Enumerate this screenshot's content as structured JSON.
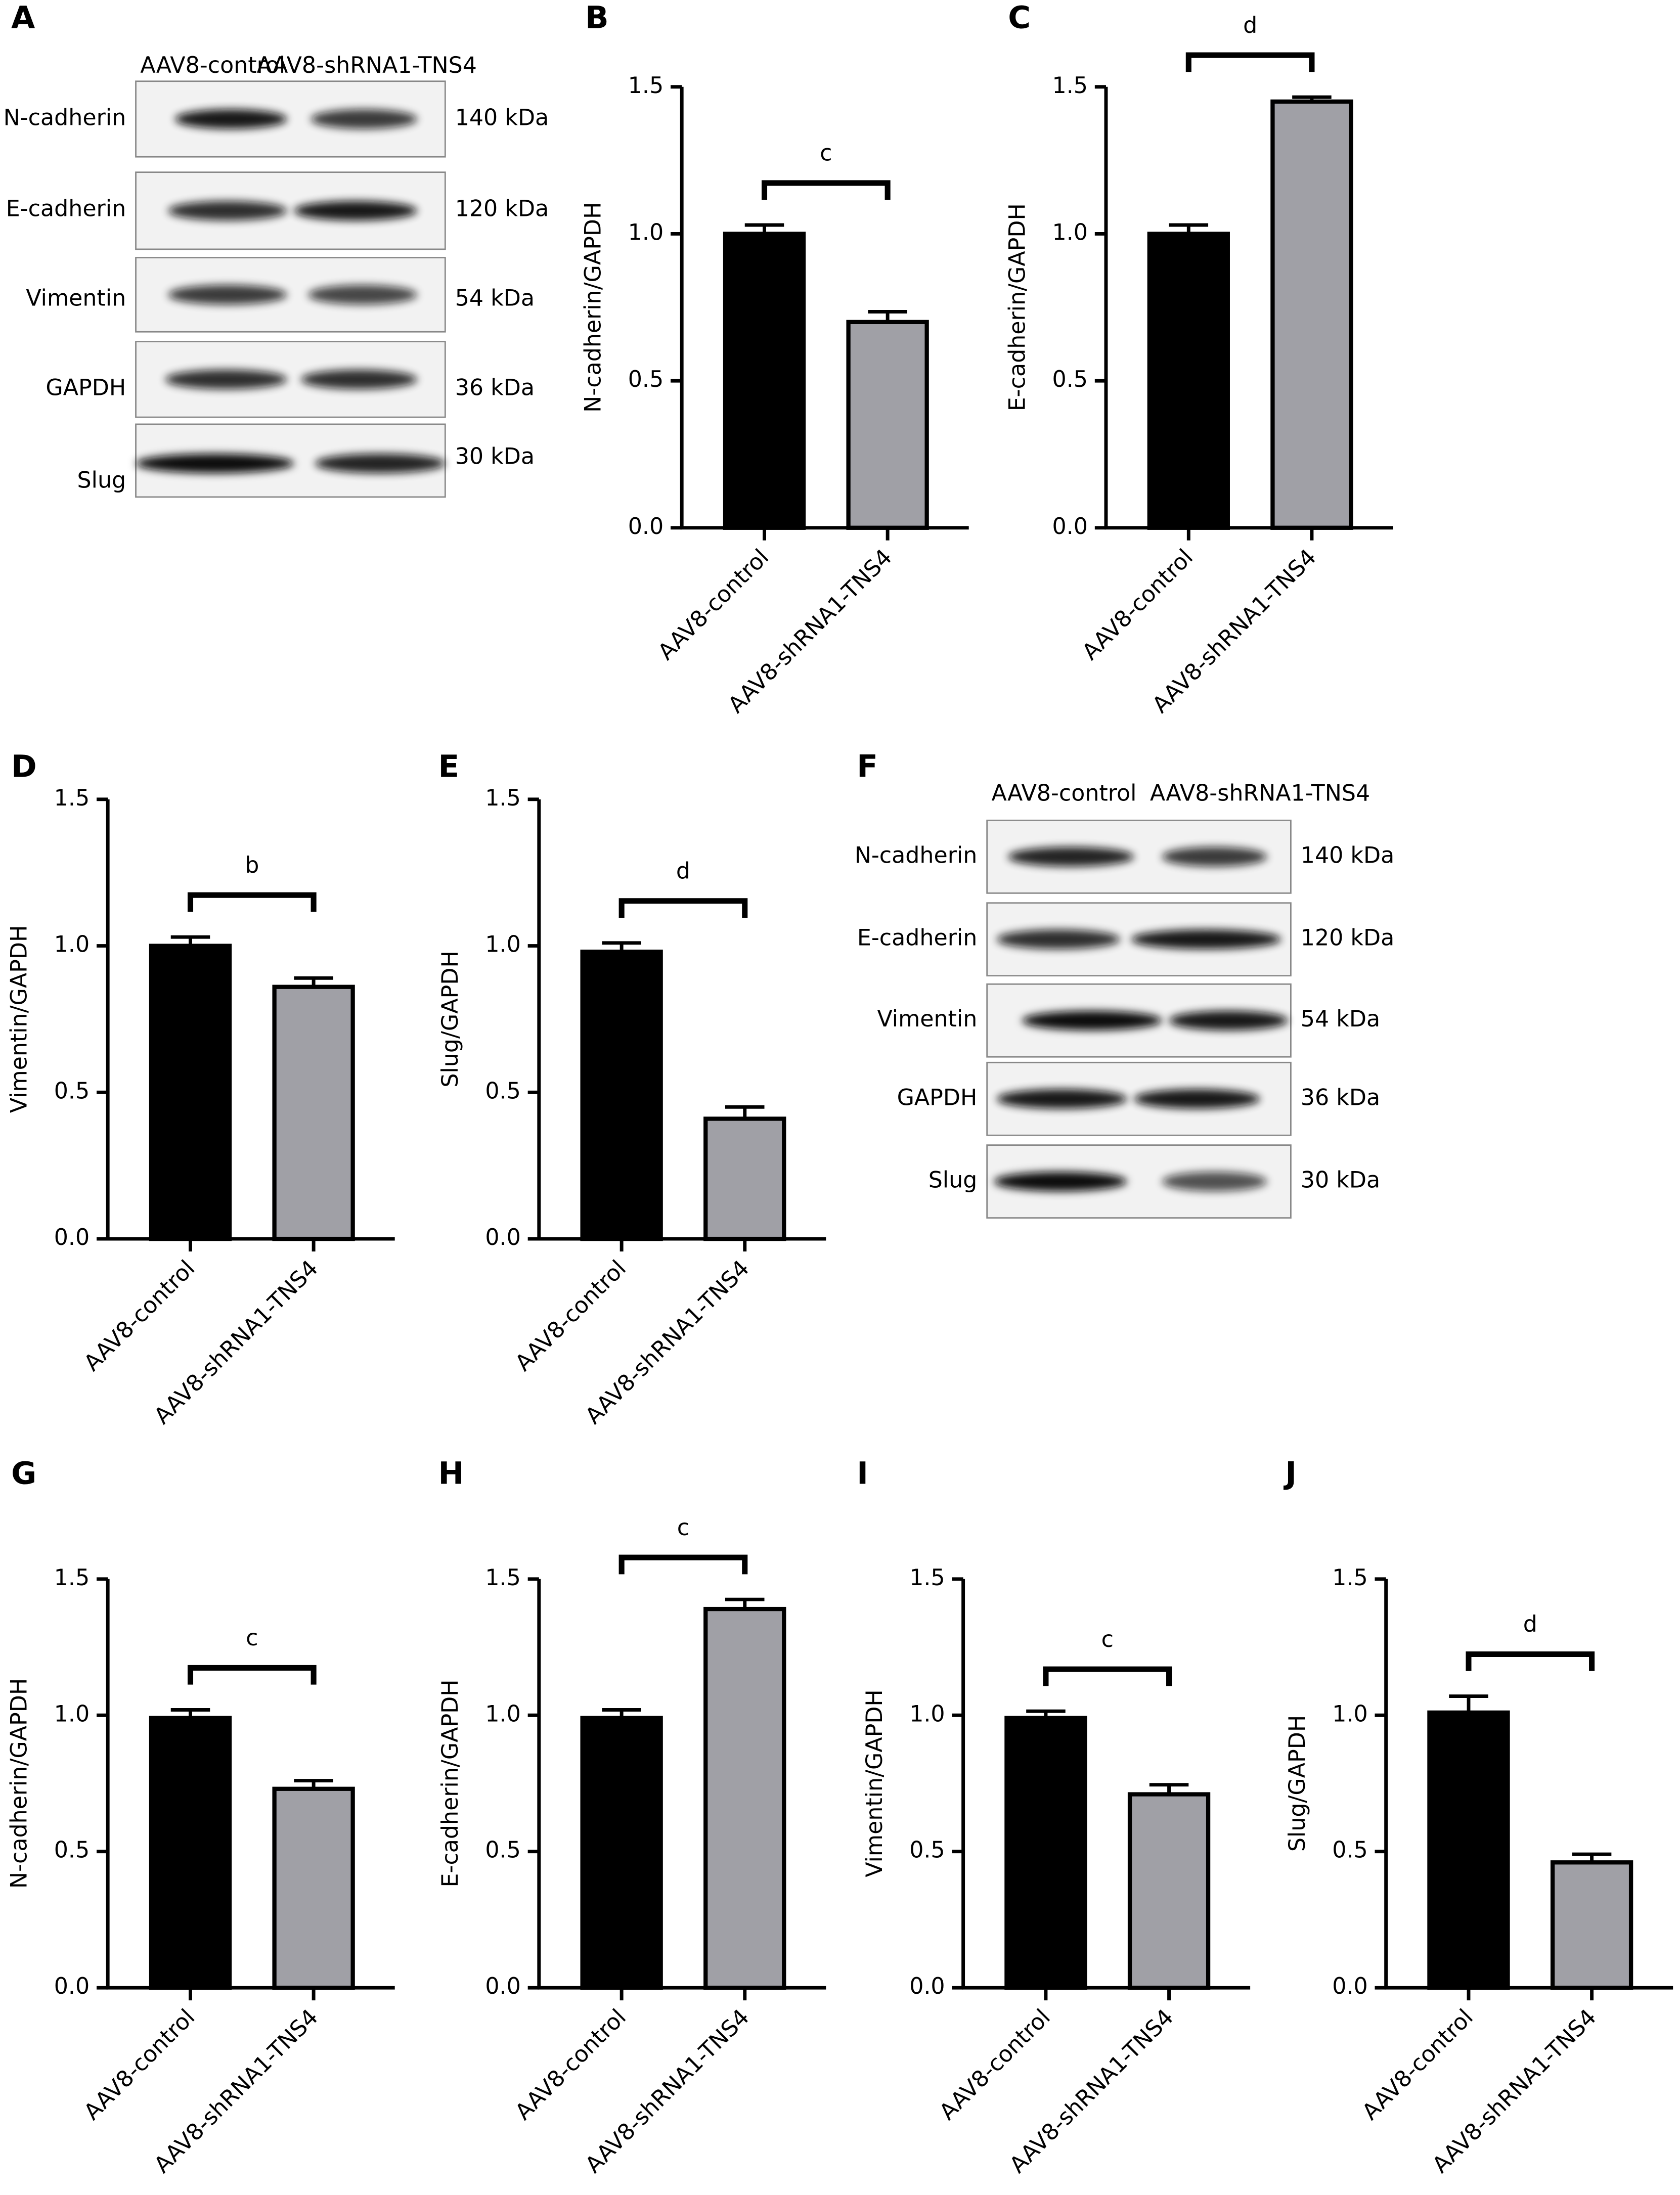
{
  "blots": [
    {
      "panel": "A",
      "columns": [
        "AAV8-control",
        "AAV8-shRNA1-TNS4"
      ],
      "rows": [
        {
          "protein": "N-cadherin",
          "size": "140 kDa"
        },
        {
          "protein": "E-cadherin",
          "size": "120 kDa"
        },
        {
          "protein": "Vimentin",
          "size": "54 kDa"
        },
        {
          "protein": "GAPDH",
          "size": "36 kDa"
        },
        {
          "protein": "Slug",
          "size": "30 kDa"
        }
      ]
    },
    {
      "panel": "F",
      "columns": [
        "AAV8-control",
        "AAV8-shRNA1-TNS4"
      ],
      "rows": [
        {
          "protein": "N-cadherin",
          "size": "140 kDa"
        },
        {
          "protein": "E-cadherin",
          "size": "120 kDa"
        },
        {
          "protein": "Vimentin",
          "size": "54 kDa"
        },
        {
          "protein": "GAPDH",
          "size": "36 kDa"
        },
        {
          "protein": "Slug",
          "size": "30 kDa"
        }
      ]
    }
  ],
  "chart_data": [
    {
      "type": "bar",
      "panel": "B",
      "ylabel": "N-cadherin/GAPDH",
      "categories": [
        "AAV8-control",
        "AAV8-shRNA1-TNS4"
      ],
      "values": [
        1.0,
        0.7
      ],
      "errors": [
        0.03,
        0.035
      ],
      "colors": [
        "#000000",
        "#a0a0a6"
      ],
      "ylim": [
        0,
        1.5
      ],
      "yticks": [
        {
          "value": 0,
          "label": "0.0"
        },
        0.5,
        {
          "value": 1,
          "label": "1.0"
        },
        1.5
      ],
      "significance": "c"
    },
    {
      "type": "bar",
      "panel": "C",
      "ylabel": "E-cadherin/GAPDH",
      "categories": [
        "AAV8-control",
        "AAV8-shRNA1-TNS4"
      ],
      "values": [
        1.0,
        1.45
      ],
      "errors": [
        0.03,
        0.015
      ],
      "colors": [
        "#000000",
        "#a0a0a6"
      ],
      "ylim": [
        0,
        1.5
      ],
      "yticks": [
        {
          "value": 0,
          "label": "0.0"
        },
        0.5,
        {
          "value": 1,
          "label": "1.0"
        },
        1.5
      ],
      "significance": "d"
    },
    {
      "type": "bar",
      "panel": "D",
      "ylabel": "Vimentin/GAPDH",
      "categories": [
        "AAV8-control",
        "AAV8-shRNA1-TNS4"
      ],
      "values": [
        1.0,
        0.86
      ],
      "errors": [
        0.03,
        0.03
      ],
      "colors": [
        "#000000",
        "#a0a0a6"
      ],
      "ylim": [
        0,
        1.5
      ],
      "yticks": [
        {
          "value": 0,
          "label": "0.0"
        },
        0.5,
        {
          "value": 1,
          "label": "1.0"
        },
        1.5
      ],
      "significance": "b"
    },
    {
      "type": "bar",
      "panel": "E",
      "ylabel": "Slug/GAPDH",
      "categories": [
        "AAV8-control",
        "AAV8-shRNA1-TNS4"
      ],
      "values": [
        0.98,
        0.41
      ],
      "errors": [
        0.03,
        0.04
      ],
      "colors": [
        "#000000",
        "#a0a0a6"
      ],
      "ylim": [
        0,
        1.5
      ],
      "yticks": [
        {
          "value": 0,
          "label": "0.0"
        },
        0.5,
        {
          "value": 1,
          "label": "1.0"
        },
        1.5
      ],
      "significance": "d"
    },
    {
      "type": "bar",
      "panel": "G",
      "ylabel": "N-cadherin/GAPDH",
      "categories": [
        "AAV8-control",
        "AAV8-shRNA1-TNS4"
      ],
      "values": [
        0.99,
        0.73
      ],
      "errors": [
        0.03,
        0.03
      ],
      "colors": [
        "#000000",
        "#a0a0a6"
      ],
      "ylim": [
        0,
        1.5
      ],
      "yticks": [
        {
          "value": 0,
          "label": "0.0"
        },
        0.5,
        {
          "value": 1,
          "label": "1.0"
        },
        1.5
      ],
      "significance": "c"
    },
    {
      "type": "bar",
      "panel": "H",
      "ylabel": "E-cadherin/GAPDH",
      "categories": [
        "AAV8-control",
        "AAV8-shRNA1-TNS4"
      ],
      "values": [
        0.99,
        1.39
      ],
      "errors": [
        0.03,
        0.035
      ],
      "colors": [
        "#000000",
        "#a0a0a6"
      ],
      "ylim": [
        0,
        1.5
      ],
      "yticks": [
        {
          "value": 0,
          "label": "0.0"
        },
        0.5,
        {
          "value": 1,
          "label": "1.0"
        },
        1.5
      ],
      "significance": "c"
    },
    {
      "type": "bar",
      "panel": "I",
      "ylabel": "Vimentin/GAPDH",
      "categories": [
        "AAV8-control",
        "AAV8-shRNA1-TNS4"
      ],
      "values": [
        0.99,
        0.71
      ],
      "errors": [
        0.025,
        0.035
      ],
      "colors": [
        "#000000",
        "#a0a0a6"
      ],
      "ylim": [
        0,
        1.5
      ],
      "yticks": [
        {
          "value": 0,
          "label": "0.0"
        },
        0.5,
        {
          "value": 1,
          "label": "1.0"
        },
        1.5
      ],
      "significance": "c"
    },
    {
      "type": "bar",
      "panel": "J",
      "ylabel": "Slug/GAPDH",
      "categories": [
        "AAV8-control",
        "AAV8-shRNA1-TNS4"
      ],
      "values": [
        1.01,
        0.46
      ],
      "errors": [
        0.06,
        0.03
      ],
      "colors": [
        "#000000",
        "#a0a0a6"
      ],
      "ylim": [
        0,
        1.5
      ],
      "yticks": [
        {
          "value": 0,
          "label": "0.0"
        },
        0.5,
        {
          "value": 1,
          "label": "1.0"
        },
        1.5
      ],
      "significance": "d"
    }
  ]
}
